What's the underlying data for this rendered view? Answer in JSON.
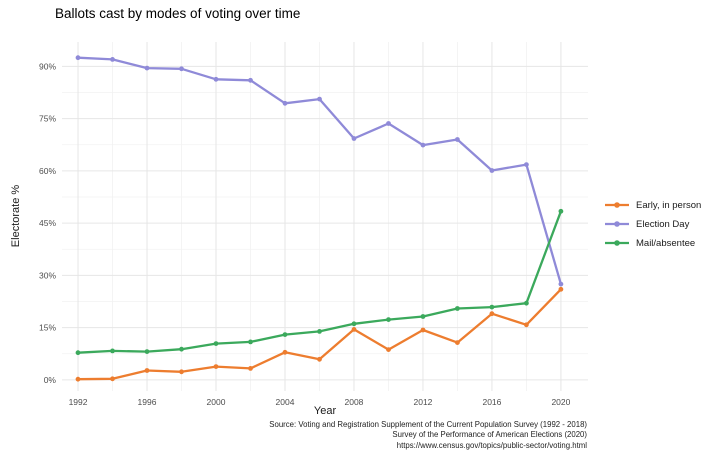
{
  "page": {
    "background": "#ffffff"
  },
  "chart_data": {
    "type": "line",
    "title": "Ballots cast by modes of voting over time",
    "xlabel": "Year",
    "ylabel": "Electorate %",
    "x": [
      1992,
      1994,
      1996,
      1998,
      2000,
      2002,
      2004,
      2006,
      2008,
      2010,
      2012,
      2014,
      2016,
      2018,
      2020
    ],
    "series": [
      {
        "name": "Early, in person",
        "color": "#ED7D2F",
        "values": [
          0.2,
          0.3,
          2.7,
          2.3,
          3.8,
          3.3,
          7.9,
          5.9,
          14.5,
          8.7,
          14.3,
          10.7,
          19.0,
          15.8,
          26.0
        ]
      },
      {
        "name": "Election Day",
        "color": "#8F8AD8",
        "values": [
          92.5,
          92.0,
          89.5,
          89.3,
          86.3,
          86.0,
          79.4,
          80.6,
          69.3,
          73.6,
          67.4,
          69.0,
          60.1,
          61.8,
          27.5
        ]
      },
      {
        "name": "Mail/absentee",
        "color": "#3BA95C",
        "values": [
          7.8,
          8.3,
          8.1,
          8.8,
          10.4,
          10.9,
          13.0,
          13.9,
          16.1,
          17.3,
          18.2,
          20.5,
          20.9,
          22.0,
          48.4
        ]
      }
    ],
    "x_ticks": [
      1992,
      1996,
      2000,
      2004,
      2008,
      2012,
      2016,
      2020
    ],
    "x_minor_ticks": [
      1994,
      1998,
      2002,
      2006,
      2010,
      2014,
      2018
    ],
    "y_ticks": [
      0,
      15,
      30,
      45,
      60,
      75,
      90
    ],
    "y_minor_ticks": [
      7.5,
      22.5,
      37.5,
      52.5,
      67.5,
      82.5
    ],
    "y_tick_suffix": "%",
    "xlim": [
      1991.07,
      2021.57
    ],
    "ylim": [
      -3.2,
      97.0
    ],
    "grid": "major+minor horizontal and vertical, no axis lines, no tick marks",
    "legend_position": "right",
    "colors": {
      "grid_major": "#e6e6e6",
      "grid_minor": "#f2f2f2",
      "tick_label": "#4d4d4d"
    },
    "caption_lines": [
      "Source: Voting and Registration Supplement of the Current Population Survey (1992 - 2018)",
      "Survey of the Performance of American Elections (2020)",
      "https://www.census.gov/topics/public-sector/voting.html"
    ]
  }
}
